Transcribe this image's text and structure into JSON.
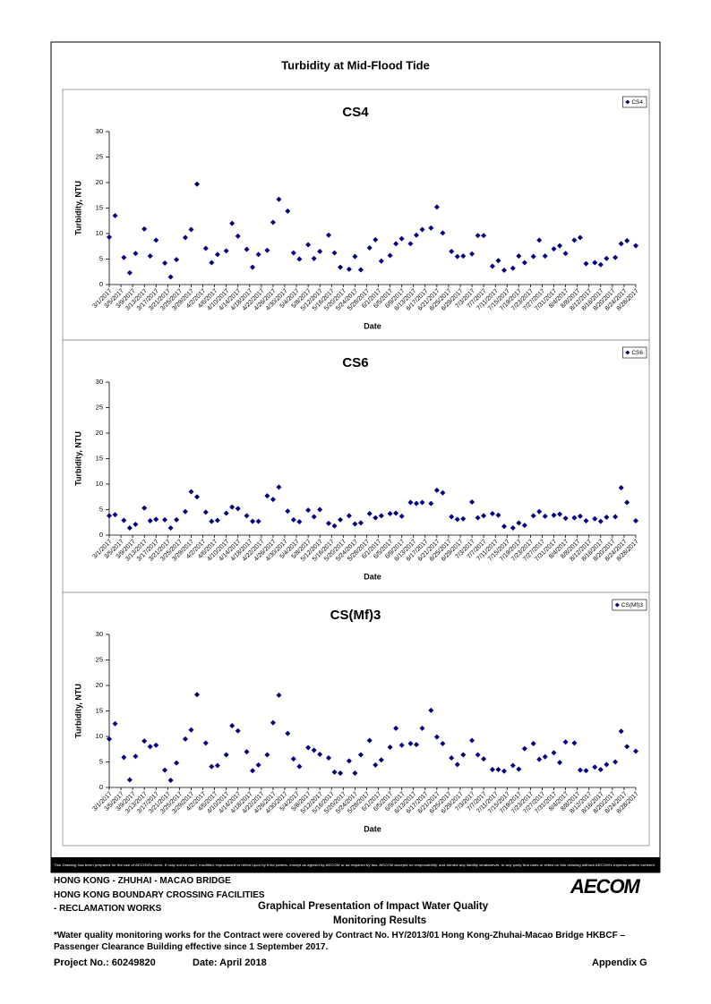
{
  "title": "Turbidity at Mid-Flood Tide",
  "chart_data": [
    {
      "type": "scatter",
      "title": "CS4",
      "x_label": "Date",
      "y_label": "Turbidity, NTU",
      "x": [
        "3/1/2017",
        "3/3/2017",
        "3/6/2017",
        "3/8/2017",
        "3/10/2017",
        "3/13/2017",
        "3/15/2017",
        "3/17/2017",
        "3/20/2017",
        "3/22/2017",
        "3/24/2017",
        "3/27/2017",
        "3/29/2017",
        "3/31/2017",
        "4/3/2017",
        "4/5/2017",
        "4/7/2017",
        "4/10/2017",
        "4/12/2017",
        "4/14/2017",
        "4/17/2017",
        "4/19/2017",
        "4/21/2017",
        "4/24/2017",
        "4/26/2017",
        "4/28/2017",
        "5/1/2017",
        "5/3/2017",
        "5/5/2017",
        "5/8/2017",
        "5/10/2017",
        "5/12/2017",
        "5/15/2017",
        "5/17/2017",
        "5/19/2017",
        "5/22/2017",
        "5/24/2017",
        "5/26/2017",
        "5/29/2017",
        "5/31/2017",
        "6/2/2017",
        "6/5/2017",
        "6/7/2017",
        "6/9/2017",
        "6/12/2017",
        "6/14/2017",
        "6/16/2017",
        "6/19/2017",
        "6/21/2017",
        "6/23/2017",
        "6/26/2017",
        "6/28/2017",
        "6/30/2017",
        "7/3/2017",
        "7/5/2017",
        "7/7/2017",
        "7/10/2017",
        "7/12/2017",
        "7/14/2017",
        "7/17/2017",
        "7/19/2017",
        "7/21/2017",
        "7/24/2017",
        "7/26/2017",
        "7/28/2017",
        "7/31/2017",
        "8/2/2017",
        "8/4/2017",
        "8/7/2017",
        "8/9/2017",
        "8/11/2017",
        "8/14/2017",
        "8/16/2017",
        "8/18/2017",
        "8/21/2017",
        "8/23/2017",
        "8/25/2017",
        "8/28/2017"
      ],
      "series": [
        {
          "name": "CS4",
          "color": "#000080",
          "values": [
            9.3,
            13.5,
            5.3,
            2.3,
            6.1,
            10.9,
            5.6,
            8.7,
            4.2,
            1.5,
            4.9,
            9.2,
            10.8,
            19.7,
            7.1,
            4.3,
            5.9,
            6.6,
            12.0,
            9.5,
            6.9,
            3.4,
            5.9,
            6.7,
            12.2,
            16.7,
            14.4,
            6.2,
            5.0,
            7.8,
            5.1,
            6.5,
            9.7,
            6.2,
            3.4,
            3.0,
            5.5,
            2.9,
            7.2,
            8.8,
            4.6,
            5.7,
            8.0,
            9.0,
            8.0,
            9.7,
            10.8,
            11.1,
            15.2,
            10.1,
            6.5,
            5.5,
            5.6,
            6.0,
            9.6,
            9.6,
            3.6,
            4.7,
            2.8,
            3.2,
            5.6,
            4.3,
            5.5,
            8.7,
            5.6,
            7.0,
            7.6,
            6.1,
            8.7,
            9.2,
            4.1,
            4.3,
            3.9,
            5.1,
            5.3,
            8.0,
            8.6,
            7.6
          ]
        }
      ],
      "xlim": [
        "3/1/2017",
        "8/28/2017"
      ],
      "xticks": [
        "3/1/2017",
        "3/5/2017",
        "3/9/2017",
        "3/13/2017",
        "3/17/2017",
        "3/21/2017",
        "3/25/2017",
        "3/29/2017",
        "4/2/2017",
        "4/6/2017",
        "4/10/2017",
        "4/14/2017",
        "4/18/2017",
        "4/22/2017",
        "4/26/2017",
        "4/30/2017",
        "5/4/2017",
        "5/8/2017",
        "5/12/2017",
        "5/16/2017",
        "5/20/2017",
        "5/24/2017",
        "5/28/2017",
        "6/1/2017",
        "6/5/2017",
        "6/9/2017",
        "6/13/2017",
        "6/17/2017",
        "6/21/2017",
        "6/25/2017",
        "6/29/2017",
        "7/3/2017",
        "7/7/2017",
        "7/11/2017",
        "7/15/2017",
        "7/19/2017",
        "7/23/2017",
        "7/27/2017",
        "7/31/2017",
        "8/4/2017",
        "8/8/2017",
        "8/12/2017",
        "8/16/2017",
        "8/20/2017",
        "8/24/2017",
        "8/28/2017"
      ],
      "ylim": [
        0,
        30
      ],
      "yticks": [
        0,
        5,
        10,
        15,
        20,
        25,
        30
      ],
      "legend": "upper right"
    },
    {
      "type": "scatter",
      "title": "CS6",
      "x_label": "Date",
      "y_label": "Turbidity, NTU",
      "x": [
        "3/1/2017",
        "3/3/2017",
        "3/6/2017",
        "3/8/2017",
        "3/10/2017",
        "3/13/2017",
        "3/15/2017",
        "3/17/2017",
        "3/20/2017",
        "3/22/2017",
        "3/24/2017",
        "3/27/2017",
        "3/29/2017",
        "3/31/2017",
        "4/3/2017",
        "4/5/2017",
        "4/7/2017",
        "4/10/2017",
        "4/12/2017",
        "4/14/2017",
        "4/17/2017",
        "4/19/2017",
        "4/21/2017",
        "4/24/2017",
        "4/26/2017",
        "4/28/2017",
        "5/1/2017",
        "5/3/2017",
        "5/5/2017",
        "5/8/2017",
        "5/10/2017",
        "5/12/2017",
        "5/15/2017",
        "5/17/2017",
        "5/19/2017",
        "5/22/2017",
        "5/24/2017",
        "5/26/2017",
        "5/29/2017",
        "5/31/2017",
        "6/2/2017",
        "6/5/2017",
        "6/7/2017",
        "6/9/2017",
        "6/12/2017",
        "6/14/2017",
        "6/16/2017",
        "6/19/2017",
        "6/21/2017",
        "6/23/2017",
        "6/26/2017",
        "6/28/2017",
        "6/30/2017",
        "7/3/2017",
        "7/5/2017",
        "7/7/2017",
        "7/10/2017",
        "7/12/2017",
        "7/14/2017",
        "7/17/2017",
        "7/19/2017",
        "7/21/2017",
        "7/24/2017",
        "7/26/2017",
        "7/28/2017",
        "7/31/2017",
        "8/2/2017",
        "8/4/2017",
        "8/7/2017",
        "8/9/2017",
        "8/11/2017",
        "8/14/2017",
        "8/16/2017",
        "8/18/2017",
        "8/21/2017",
        "8/23/2017",
        "8/25/2017",
        "8/28/2017"
      ],
      "series": [
        {
          "name": "CS6",
          "color": "#000080",
          "values": [
            3.8,
            4.0,
            2.9,
            1.4,
            2.1,
            5.3,
            2.8,
            3.1,
            3.0,
            1.4,
            3.0,
            4.6,
            8.5,
            7.5,
            4.5,
            2.7,
            2.9,
            4.3,
            5.5,
            5.2,
            3.8,
            2.7,
            2.7,
            7.7,
            7.0,
            9.4,
            4.7,
            3.0,
            2.6,
            4.9,
            3.6,
            5.0,
            2.3,
            1.8,
            3.0,
            3.8,
            2.2,
            2.4,
            4.2,
            3.4,
            3.8,
            4.2,
            4.3,
            3.7,
            6.4,
            6.2,
            6.4,
            6.2,
            8.8,
            8.3,
            3.6,
            3.1,
            3.2,
            6.5,
            3.4,
            3.8,
            4.2,
            3.9,
            1.7,
            1.4,
            2.4,
            1.9,
            3.8,
            4.6,
            3.7,
            3.9,
            4.1,
            3.3,
            3.4,
            3.7,
            2.8,
            3.2,
            2.7,
            3.5,
            3.6,
            9.3,
            6.4,
            2.8
          ]
        }
      ],
      "xlim": [
        "3/1/2017",
        "8/28/2017"
      ],
      "xticks": [
        "3/1/2017",
        "3/5/2017",
        "3/9/2017",
        "3/13/2017",
        "3/17/2017",
        "3/21/2017",
        "3/25/2017",
        "3/29/2017",
        "4/2/2017",
        "4/6/2017",
        "4/10/2017",
        "4/14/2017",
        "4/18/2017",
        "4/22/2017",
        "4/26/2017",
        "4/30/2017",
        "5/4/2017",
        "5/8/2017",
        "5/12/2017",
        "5/16/2017",
        "5/20/2017",
        "5/24/2017",
        "5/28/2017",
        "6/1/2017",
        "6/5/2017",
        "6/9/2017",
        "6/13/2017",
        "6/17/2017",
        "6/21/2017",
        "6/25/2017",
        "6/29/2017",
        "7/3/2017",
        "7/7/2017",
        "7/11/2017",
        "7/15/2017",
        "7/19/2017",
        "7/23/2017",
        "7/27/2017",
        "7/31/2017",
        "8/4/2017",
        "8/8/2017",
        "8/12/2017",
        "8/16/2017",
        "8/20/2017",
        "8/24/2017",
        "8/28/2017"
      ],
      "ylim": [
        0,
        30
      ],
      "yticks": [
        0,
        5,
        10,
        15,
        20,
        25,
        30
      ],
      "legend": "upper right"
    },
    {
      "type": "scatter",
      "title": "CS(Mf)3",
      "x_label": "Date",
      "y_label": "Turbidity, NTU",
      "x": [
        "3/1/2017",
        "3/3/2017",
        "3/6/2017",
        "3/8/2017",
        "3/10/2017",
        "3/13/2017",
        "3/15/2017",
        "3/17/2017",
        "3/20/2017",
        "3/22/2017",
        "3/24/2017",
        "3/27/2017",
        "3/29/2017",
        "3/31/2017",
        "4/3/2017",
        "4/5/2017",
        "4/7/2017",
        "4/10/2017",
        "4/12/2017",
        "4/14/2017",
        "4/17/2017",
        "4/19/2017",
        "4/21/2017",
        "4/24/2017",
        "4/26/2017",
        "4/28/2017",
        "5/1/2017",
        "5/3/2017",
        "5/5/2017",
        "5/8/2017",
        "5/10/2017",
        "5/12/2017",
        "5/15/2017",
        "5/17/2017",
        "5/19/2017",
        "5/22/2017",
        "5/24/2017",
        "5/26/2017",
        "5/29/2017",
        "5/31/2017",
        "6/2/2017",
        "6/5/2017",
        "6/7/2017",
        "6/9/2017",
        "6/12/2017",
        "6/14/2017",
        "6/16/2017",
        "6/19/2017",
        "6/21/2017",
        "6/23/2017",
        "6/26/2017",
        "6/28/2017",
        "6/30/2017",
        "7/3/2017",
        "7/5/2017",
        "7/7/2017",
        "7/10/2017",
        "7/12/2017",
        "7/14/2017",
        "7/17/2017",
        "7/19/2017",
        "7/21/2017",
        "7/24/2017",
        "7/26/2017",
        "7/28/2017",
        "7/31/2017",
        "8/2/2017",
        "8/4/2017",
        "8/7/2017",
        "8/9/2017",
        "8/11/2017",
        "8/14/2017",
        "8/16/2017",
        "8/18/2017",
        "8/21/2017",
        "8/23/2017",
        "8/25/2017",
        "8/28/2017"
      ],
      "series": [
        {
          "name": "CS(Mf)3",
          "color": "#000080",
          "values": [
            9.5,
            12.5,
            5.9,
            1.5,
            6.1,
            9.1,
            8.0,
            8.3,
            3.4,
            1.4,
            4.8,
            9.5,
            11.3,
            18.2,
            8.7,
            4.1,
            4.3,
            6.4,
            12.1,
            11.1,
            7.0,
            3.3,
            4.4,
            6.4,
            12.7,
            18.1,
            10.6,
            5.6,
            4.1,
            7.8,
            7.3,
            6.5,
            5.8,
            3.0,
            2.8,
            5.2,
            2.8,
            6.4,
            9.2,
            4.4,
            5.4,
            7.9,
            11.6,
            8.3,
            8.6,
            8.4,
            11.6,
            15.1,
            9.9,
            8.6,
            5.8,
            4.5,
            6.4,
            9.2,
            6.4,
            5.6,
            3.5,
            3.5,
            3.2,
            4.3,
            3.6,
            7.6,
            8.6,
            5.5,
            6.0,
            6.8,
            4.9,
            8.9,
            8.7,
            3.4,
            3.3,
            4.0,
            3.5,
            4.5,
            5.0,
            11.0,
            8.0,
            7.1
          ]
        }
      ],
      "xlim": [
        "3/1/2017",
        "8/28/2017"
      ],
      "xticks": [
        "3/1/2017",
        "3/5/2017",
        "3/9/2017",
        "3/13/2017",
        "3/17/2017",
        "3/21/2017",
        "3/25/2017",
        "3/29/2017",
        "4/2/2017",
        "4/6/2017",
        "4/10/2017",
        "4/14/2017",
        "4/18/2017",
        "4/22/2017",
        "4/26/2017",
        "4/30/2017",
        "5/4/2017",
        "5/8/2017",
        "5/12/2017",
        "5/16/2017",
        "5/20/2017",
        "5/24/2017",
        "5/28/2017",
        "6/1/2017",
        "6/5/2017",
        "6/9/2017",
        "6/13/2017",
        "6/17/2017",
        "6/21/2017",
        "6/25/2017",
        "6/29/2017",
        "7/3/2017",
        "7/7/2017",
        "7/11/2017",
        "7/15/2017",
        "7/19/2017",
        "7/23/2017",
        "7/27/2017",
        "7/31/2017",
        "8/4/2017",
        "8/8/2017",
        "8/12/2017",
        "8/16/2017",
        "8/20/2017",
        "8/24/2017",
        "8/28/2017"
      ],
      "ylim": [
        0,
        30
      ],
      "yticks": [
        0,
        5,
        10,
        15,
        20,
        25,
        30
      ],
      "legend": "upper right"
    }
  ],
  "disclaimer": "This Drawing has been prepared for the use of AECOM's client. It may not be used, modified, reproduced or relied upon by third parties, except as agreed by AECOM or as required by law. AECOM accepts no responsibility, and denies any liability whatsoever, to any party that uses or relies on this drawing without AECOM's express written consent.",
  "footer": {
    "project_lines": [
      "HONG KONG - ZHUHAI - MACAO BRIDGE",
      "HONG KONG BOUNDARY CROSSING FACILITIES",
      "- RECLAMATION WORKS"
    ],
    "logo": "AECOM",
    "doc_title": [
      "Graphical Presentation of Impact Water Quality",
      "Monitoring Results"
    ],
    "note": "*Water quality monitoring works for the Contract were covered by Contract No. HY/2013/01 Hong Kong-Zhuhai-Macao Bridge HKBCF – Passenger Clearance Building effective since 1 September 2017.",
    "project_no": "Project No.: 60249820",
    "date": "Date: April 2018",
    "appendix": "Appendix G"
  }
}
